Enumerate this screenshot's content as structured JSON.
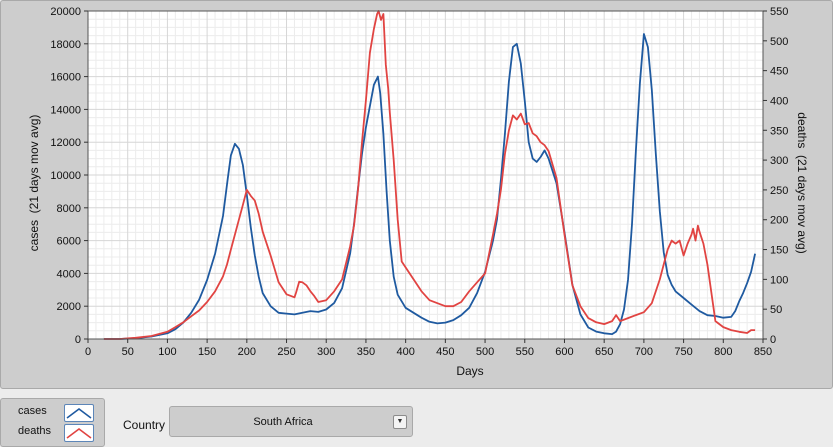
{
  "chart_data": {
    "type": "line",
    "xlabel": "Days",
    "y_left_label": "cases  (21 days mov avg)",
    "y_right_label": "deaths  (21 days mov avg)",
    "xlim": [
      0,
      850
    ],
    "y_left_lim": [
      0,
      20000
    ],
    "y_right_lim": [
      0,
      550
    ],
    "x_ticks": [
      0,
      50,
      100,
      150,
      200,
      250,
      300,
      350,
      400,
      450,
      500,
      550,
      600,
      650,
      700,
      750,
      800,
      850
    ],
    "y_left_ticks": [
      0,
      2000,
      4000,
      6000,
      8000,
      10000,
      12000,
      14000,
      16000,
      18000,
      20000
    ],
    "y_right_ticks": [
      0,
      50,
      100,
      150,
      200,
      250,
      300,
      350,
      400,
      450,
      500,
      550
    ],
    "grid": true,
    "series": [
      {
        "name": "cases",
        "color": "#1f5aa0",
        "axis": "left",
        "x": [
          20,
          40,
          60,
          80,
          100,
          110,
          120,
          130,
          140,
          150,
          160,
          170,
          176,
          180,
          185,
          190,
          195,
          200,
          205,
          210,
          215,
          220,
          230,
          240,
          250,
          260,
          270,
          280,
          290,
          300,
          310,
          320,
          330,
          335,
          340,
          345,
          350,
          355,
          360,
          365,
          368,
          372,
          376,
          380,
          385,
          390,
          400,
          410,
          420,
          430,
          440,
          450,
          460,
          470,
          480,
          490,
          500,
          510,
          515,
          520,
          525,
          530,
          535,
          540,
          545,
          550,
          555,
          560,
          565,
          570,
          575,
          580,
          590,
          600,
          610,
          620,
          630,
          640,
          650,
          660,
          665,
          670,
          675,
          680,
          685,
          690,
          695,
          700,
          705,
          710,
          715,
          720,
          725,
          730,
          735,
          740,
          750,
          760,
          770,
          780,
          790,
          800,
          810,
          815,
          820,
          825,
          830,
          835,
          840
        ],
        "y": [
          0,
          0,
          50,
          150,
          350,
          600,
          1000,
          1600,
          2400,
          3600,
          5200,
          7500,
          9800,
          11200,
          11900,
          11600,
          10600,
          8800,
          6800,
          5100,
          3800,
          2800,
          2000,
          1600,
          1550,
          1500,
          1600,
          1700,
          1650,
          1800,
          2200,
          3100,
          5200,
          7000,
          9200,
          11300,
          12900,
          14200,
          15500,
          16000,
          15000,
          12500,
          9000,
          6000,
          3800,
          2700,
          1900,
          1600,
          1300,
          1050,
          950,
          1000,
          1150,
          1450,
          1900,
          2800,
          4100,
          6000,
          7300,
          9700,
          12500,
          15700,
          17800,
          18000,
          16800,
          14500,
          12000,
          11000,
          10800,
          11100,
          11500,
          11000,
          9500,
          6500,
          3300,
          1500,
          700,
          450,
          350,
          300,
          450,
          900,
          1800,
          3600,
          7000,
          11500,
          15600,
          18600,
          17800,
          15200,
          11300,
          7800,
          5300,
          3900,
          3300,
          2900,
          2500,
          2100,
          1700,
          1450,
          1400,
          1300,
          1350,
          1700,
          2300,
          2800,
          3400,
          4100,
          5200
        ]
      },
      {
        "name": "deaths",
        "color": "#e14442",
        "axis": "right",
        "x": [
          20,
          40,
          60,
          80,
          100,
          110,
          120,
          130,
          140,
          150,
          160,
          170,
          175,
          180,
          185,
          190,
          195,
          200,
          205,
          210,
          215,
          220,
          230,
          240,
          250,
          260,
          262,
          266,
          270,
          275,
          280,
          285,
          290,
          300,
          310,
          320,
          330,
          335,
          340,
          345,
          350,
          355,
          360,
          364,
          366,
          369,
          372,
          375,
          378,
          380,
          385,
          390,
          395,
          400,
          410,
          420,
          430,
          440,
          450,
          460,
          470,
          480,
          490,
          500,
          510,
          515,
          520,
          525,
          530,
          535,
          540,
          545,
          550,
          555,
          560,
          565,
          570,
          575,
          580,
          590,
          600,
          610,
          620,
          630,
          640,
          650,
          660,
          665,
          670,
          680,
          690,
          700,
          710,
          720,
          725,
          730,
          735,
          740,
          745,
          750,
          755,
          760,
          762,
          765,
          768,
          770,
          775,
          780,
          790,
          800,
          810,
          820,
          830,
          835,
          840
        ],
        "y": [
          0,
          0,
          2,
          5,
          12,
          20,
          28,
          38,
          48,
          62,
          80,
          105,
          125,
          150,
          175,
          200,
          225,
          250,
          240,
          232,
          210,
          180,
          140,
          95,
          75,
          70,
          78,
          96,
          95,
          90,
          80,
          72,
          62,
          65,
          80,
          100,
          155,
          190,
          250,
          330,
          400,
          480,
          520,
          545,
          550,
          535,
          545,
          460,
          420,
          380,
          300,
          200,
          130,
          120,
          100,
          80,
          65,
          60,
          55,
          55,
          62,
          80,
          95,
          110,
          175,
          210,
          250,
          310,
          350,
          375,
          368,
          378,
          360,
          362,
          345,
          340,
          330,
          325,
          315,
          270,
          175,
          90,
          55,
          35,
          28,
          25,
          30,
          40,
          30,
          35,
          40,
          45,
          60,
          100,
          125,
          150,
          165,
          160,
          165,
          140,
          160,
          175,
          185,
          165,
          190,
          180,
          160,
          125,
          30,
          20,
          15,
          12,
          10,
          15,
          15
        ]
      }
    ]
  },
  "legend": {
    "items": [
      {
        "label": "cases",
        "color": "#1f5aa0"
      },
      {
        "label": "deaths",
        "color": "#e14442"
      }
    ]
  },
  "country": {
    "label": "Country",
    "selected": "South Africa"
  }
}
